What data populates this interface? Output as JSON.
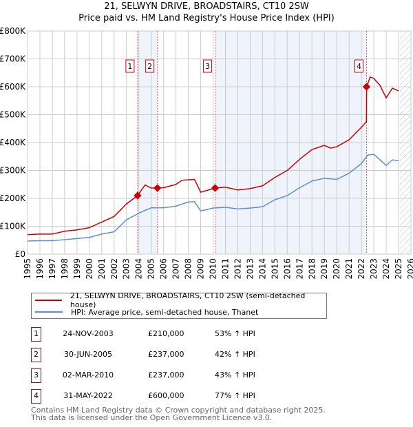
{
  "chart_data": {
    "type": "line",
    "title": "21, SELWYN DRIVE, BROADSTAIRS, CT10 2SW",
    "subtitle": "Price paid vs. HM Land Registry's House Price Index (HPI)",
    "xlim": [
      1995,
      2026
    ],
    "ylim": [
      0,
      800000
    ],
    "x_ticks": [
      "1995",
      "1996",
      "1997",
      "1998",
      "1999",
      "2000",
      "2001",
      "2002",
      "2003",
      "2004",
      "2005",
      "2006",
      "2007",
      "2008",
      "2009",
      "2010",
      "2011",
      "2012",
      "2013",
      "2014",
      "2015",
      "2016",
      "2017",
      "2018",
      "2019",
      "2020",
      "2021",
      "2022",
      "2023",
      "2024",
      "2025",
      "2026"
    ],
    "y_ticks": [
      {
        "v": 0,
        "l": "£0"
      },
      {
        "v": 100000,
        "l": "£100K"
      },
      {
        "v": 200000,
        "l": "£200K"
      },
      {
        "v": 300000,
        "l": "£300K"
      },
      {
        "v": 400000,
        "l": "£400K"
      },
      {
        "v": 500000,
        "l": "£500K"
      },
      {
        "v": 600000,
        "l": "£600K"
      },
      {
        "v": 700000,
        "l": "£700K"
      },
      {
        "v": 800000,
        "l": "£800K"
      }
    ],
    "grid": true,
    "shaded_ranges": [
      [
        2003.9,
        2005.5
      ],
      [
        2010.17,
        2022.41
      ]
    ],
    "hatched_from": 2025.1,
    "series": [
      {
        "name": "21, SELWYN DRIVE, BROADSTAIRS, CT10 2SW (semi-detached house)",
        "color": "#cc0000",
        "x": [
          1995,
          1996,
          1997,
          1998,
          1999,
          2000,
          2001,
          2002,
          2003,
          2003.9,
          2004.5,
          2005,
          2005.5,
          2006,
          2007,
          2007.5,
          2008.5,
          2009,
          2010.17,
          2011,
          2012,
          2013,
          2014,
          2015,
          2016,
          2017,
          2018,
          2019,
          2019.5,
          2020,
          2021,
          2022,
          2022.4,
          2022.42,
          2022.7,
          2023,
          2023.5,
          2024,
          2024.5,
          2025
        ],
        "y": [
          70000,
          72000,
          72000,
          82000,
          87000,
          95000,
          115000,
          135000,
          180000,
          210000,
          248000,
          237000,
          237000,
          238000,
          250000,
          265000,
          268000,
          222000,
          237000,
          240000,
          230000,
          235000,
          245000,
          275000,
          300000,
          340000,
          375000,
          390000,
          380000,
          385000,
          410000,
          455000,
          475000,
          600000,
          635000,
          630000,
          605000,
          560000,
          595000,
          585000
        ]
      },
      {
        "name": "HPI: Average price, semi-detached house, Thanet",
        "color": "#5b8fd4",
        "x": [
          1995,
          1996,
          1997,
          1998,
          1999,
          2000,
          2001,
          2002,
          2003,
          2004,
          2005,
          2006,
          2007,
          2008,
          2008.5,
          2009,
          2010,
          2011,
          2012,
          2013,
          2014,
          2015,
          2016,
          2017,
          2018,
          2019,
          2020,
          2021,
          2022,
          2022.5,
          2023,
          2024,
          2024.5,
          2025
        ],
        "y": [
          47000,
          48000,
          48000,
          52000,
          56000,
          60000,
          72000,
          80000,
          123000,
          147000,
          166000,
          166000,
          172000,
          187000,
          188000,
          155000,
          165000,
          168000,
          162000,
          165000,
          170000,
          195000,
          210000,
          238000,
          262000,
          272000,
          268000,
          290000,
          325000,
          355000,
          358000,
          318000,
          338000,
          335000
        ]
      }
    ],
    "markers": [
      {
        "label": "1",
        "x": 2003.9,
        "y": 210000
      },
      {
        "label": "2",
        "x": 2005.5,
        "y": 237000
      },
      {
        "label": "3",
        "x": 2010.17,
        "y": 237000
      },
      {
        "label": "4",
        "x": 2022.41,
        "y": 600000
      }
    ]
  },
  "legend": {
    "red": "21, SELWYN DRIVE, BROADSTAIRS, CT10 2SW (semi-detached house)",
    "blue": "HPI: Average price, semi-detached house, Thanet"
  },
  "sales": [
    {
      "n": "1",
      "date": "24-NOV-2003",
      "price": "£210,000",
      "hpi": "53% ↑ HPI"
    },
    {
      "n": "2",
      "date": "30-JUN-2005",
      "price": "£237,000",
      "hpi": "42% ↑ HPI"
    },
    {
      "n": "3",
      "date": "02-MAR-2010",
      "price": "£237,000",
      "hpi": "43% ↑ HPI"
    },
    {
      "n": "4",
      "date": "31-MAY-2022",
      "price": "£600,000",
      "hpi": "77% ↑ HPI"
    }
  ],
  "footer": {
    "line1": "Contains HM Land Registry data © Crown copyright and database right 2025.",
    "line2": "This data is licensed under the Open Government Licence v3.0."
  }
}
